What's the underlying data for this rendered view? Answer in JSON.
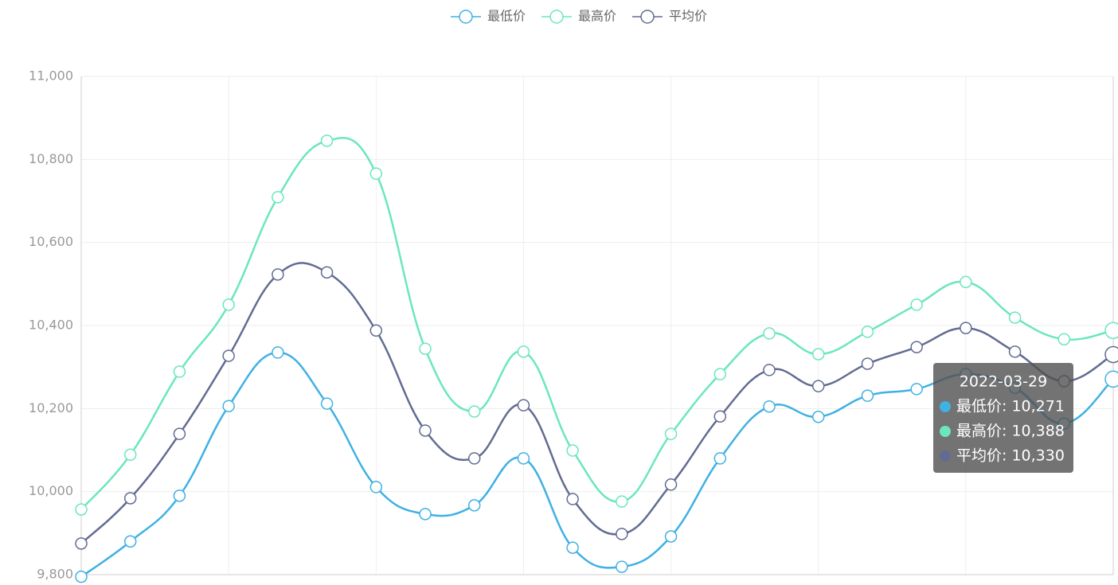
{
  "chart_data": {
    "type": "line",
    "smooth": true,
    "categories": [
      null,
      null,
      null,
      null,
      null,
      null,
      null,
      null,
      null,
      null,
      null,
      null,
      null,
      null,
      null,
      null,
      null,
      null,
      null,
      null,
      null,
      "2022-03-29"
    ],
    "series": [
      {
        "name": "最低价",
        "color": "#3fb1e3",
        "values": [
          9795,
          9880,
          9990,
          10206,
          10335,
          10212,
          10011,
          9946,
          9967,
          10080,
          9865,
          9819,
          9892,
          10080,
          10205,
          10180,
          10231,
          10247,
          10283,
          10250,
          10164,
          10271
        ]
      },
      {
        "name": "最高价",
        "color": "#6be6c1",
        "values": [
          9957,
          10089,
          10289,
          10450,
          10709,
          10845,
          10766,
          10344,
          10193,
          10337,
          10099,
          9976,
          10139,
          10283,
          10381,
          10331,
          10385,
          10450,
          10505,
          10419,
          10367,
          10388
        ]
      },
      {
        "name": "平均价",
        "color": "#626c91",
        "values": [
          9875,
          9984,
          10139,
          10327,
          10523,
          10528,
          10388,
          10147,
          10080,
          10208,
          9982,
          9898,
          10017,
          10181,
          10293,
          10254,
          10308,
          10348,
          10394,
          10337,
          10266,
          10330
        ]
      }
    ],
    "ylim": [
      9800,
      11000
    ],
    "yticks": [
      {
        "value": 9800,
        "label": "9,800"
      },
      {
        "value": 10000,
        "label": "10,000"
      },
      {
        "value": 10200,
        "label": "10,200"
      },
      {
        "value": 10400,
        "label": "10,400"
      },
      {
        "value": 10600,
        "label": "10,600"
      },
      {
        "value": 10800,
        "label": "10,800"
      },
      {
        "value": 11000,
        "label": "11,000"
      }
    ],
    "grid": true,
    "legend": "top",
    "tooltip": {
      "title": "2022-03-29",
      "items": [
        "最低价: 10,271",
        "最高价: 10,388",
        "平均价: 10,330"
      ]
    }
  }
}
